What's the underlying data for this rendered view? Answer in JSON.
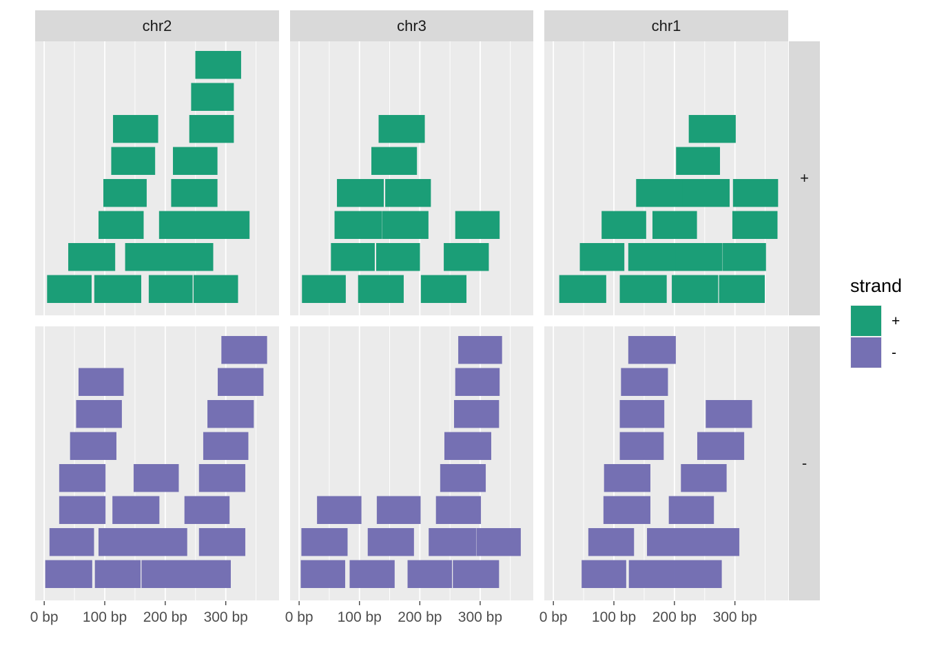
{
  "chart_data": {
    "type": "bar",
    "description_kind": "faceted interval layout plot (genomic ranges)",
    "x_axis": {
      "ticks": [
        0,
        100,
        200,
        300
      ],
      "tick_labels": [
        "0 bp",
        "100 bp",
        "200 bp",
        "300 bp"
      ]
    },
    "columns": [
      "chr2",
      "chr3",
      "chr1"
    ],
    "rows": [
      "+",
      "-"
    ],
    "legend": {
      "title": "strand",
      "entries": [
        {
          "label": "+",
          "color": "#1b9e77"
        },
        {
          "label": "-",
          "color": "#7570b3"
        }
      ]
    },
    "colors": {
      "+": "#1b9e77",
      "-": "#7570b3"
    },
    "panels": [
      {
        "chromosome": "chr2",
        "strand": "+",
        "xlim": [
          -15,
          388
        ],
        "ranges": [
          {
            "start": 5,
            "end": 78,
            "level": 1
          },
          {
            "start": 83,
            "end": 160,
            "level": 1
          },
          {
            "start": 173,
            "end": 245,
            "level": 1
          },
          {
            "start": 247,
            "end": 320,
            "level": 1
          },
          {
            "start": 40,
            "end": 117,
            "level": 2
          },
          {
            "start": 134,
            "end": 279,
            "level": 2
          },
          {
            "start": 90,
            "end": 164,
            "level": 3
          },
          {
            "start": 190,
            "end": 339,
            "level": 3
          },
          {
            "start": 98,
            "end": 169,
            "level": 4
          },
          {
            "start": 210,
            "end": 286,
            "level": 4
          },
          {
            "start": 111,
            "end": 183,
            "level": 5
          },
          {
            "start": 213,
            "end": 286,
            "level": 5
          },
          {
            "start": 114,
            "end": 188,
            "level": 6
          },
          {
            "start": 240,
            "end": 313,
            "level": 6
          },
          {
            "start": 243,
            "end": 313,
            "level": 7
          },
          {
            "start": 250,
            "end": 325,
            "level": 8
          }
        ]
      },
      {
        "chromosome": "chr3",
        "strand": "+",
        "xlim": [
          -15,
          388
        ],
        "ranges": [
          {
            "start": 5,
            "end": 77,
            "level": 1
          },
          {
            "start": 98,
            "end": 173,
            "level": 1
          },
          {
            "start": 202,
            "end": 277,
            "level": 1
          },
          {
            "start": 53,
            "end": 125,
            "level": 2
          },
          {
            "start": 128,
            "end": 200,
            "level": 2
          },
          {
            "start": 240,
            "end": 314,
            "level": 2
          },
          {
            "start": 59,
            "end": 137,
            "level": 3
          },
          {
            "start": 138,
            "end": 214,
            "level": 3
          },
          {
            "start": 259,
            "end": 332,
            "level": 3
          },
          {
            "start": 63,
            "end": 140,
            "level": 4
          },
          {
            "start": 143,
            "end": 218,
            "level": 4
          },
          {
            "start": 120,
            "end": 195,
            "level": 5
          },
          {
            "start": 132,
            "end": 208,
            "level": 6
          }
        ]
      },
      {
        "chromosome": "chr1",
        "strand": "+",
        "xlim": [
          -15,
          388
        ],
        "ranges": [
          {
            "start": 10,
            "end": 87,
            "level": 1
          },
          {
            "start": 110,
            "end": 187,
            "level": 1
          },
          {
            "start": 196,
            "end": 272,
            "level": 1
          },
          {
            "start": 274,
            "end": 349,
            "level": 1
          },
          {
            "start": 44,
            "end": 117,
            "level": 2
          },
          {
            "start": 124,
            "end": 202,
            "level": 2
          },
          {
            "start": 202,
            "end": 279,
            "level": 2
          },
          {
            "start": 280,
            "end": 351,
            "level": 2
          },
          {
            "start": 80,
            "end": 153,
            "level": 3
          },
          {
            "start": 164,
            "end": 237,
            "level": 3
          },
          {
            "start": 296,
            "end": 370,
            "level": 3
          },
          {
            "start": 137,
            "end": 213,
            "level": 4
          },
          {
            "start": 213,
            "end": 291,
            "level": 4
          },
          {
            "start": 297,
            "end": 371,
            "level": 4
          },
          {
            "start": 203,
            "end": 275,
            "level": 5
          },
          {
            "start": 224,
            "end": 301,
            "level": 6
          }
        ]
      },
      {
        "chromosome": "chr2",
        "strand": "-",
        "xlim": [
          -15,
          388
        ],
        "ranges": [
          {
            "start": 2,
            "end": 79,
            "level": 1
          },
          {
            "start": 84,
            "end": 159,
            "level": 1
          },
          {
            "start": 161,
            "end": 308,
            "level": 1
          },
          {
            "start": 9,
            "end": 82,
            "level": 2
          },
          {
            "start": 90,
            "end": 236,
            "level": 2
          },
          {
            "start": 256,
            "end": 332,
            "level": 2
          },
          {
            "start": 25,
            "end": 101,
            "level": 3
          },
          {
            "start": 113,
            "end": 190,
            "level": 3
          },
          {
            "start": 232,
            "end": 306,
            "level": 3
          },
          {
            "start": 25,
            "end": 101,
            "level": 4
          },
          {
            "start": 148,
            "end": 222,
            "level": 4
          },
          {
            "start": 256,
            "end": 332,
            "level": 4
          },
          {
            "start": 43,
            "end": 119,
            "level": 5
          },
          {
            "start": 263,
            "end": 337,
            "level": 5
          },
          {
            "start": 53,
            "end": 128,
            "level": 6
          },
          {
            "start": 270,
            "end": 346,
            "level": 6
          },
          {
            "start": 57,
            "end": 131,
            "level": 7
          },
          {
            "start": 287,
            "end": 362,
            "level": 7
          },
          {
            "start": 293,
            "end": 368,
            "level": 8
          }
        ]
      },
      {
        "chromosome": "chr3",
        "strand": "-",
        "xlim": [
          -15,
          388
        ],
        "ranges": [
          {
            "start": 3,
            "end": 76,
            "level": 1
          },
          {
            "start": 84,
            "end": 158,
            "level": 1
          },
          {
            "start": 180,
            "end": 253,
            "level": 1
          },
          {
            "start": 255,
            "end": 331,
            "level": 1
          },
          {
            "start": 4,
            "end": 80,
            "level": 2
          },
          {
            "start": 114,
            "end": 190,
            "level": 2
          },
          {
            "start": 215,
            "end": 293,
            "level": 2
          },
          {
            "start": 294,
            "end": 367,
            "level": 2
          },
          {
            "start": 30,
            "end": 103,
            "level": 3
          },
          {
            "start": 129,
            "end": 201,
            "level": 3
          },
          {
            "start": 227,
            "end": 301,
            "level": 3
          },
          {
            "start": 234,
            "end": 309,
            "level": 4
          },
          {
            "start": 241,
            "end": 318,
            "level": 5
          },
          {
            "start": 257,
            "end": 331,
            "level": 6
          },
          {
            "start": 259,
            "end": 332,
            "level": 7
          },
          {
            "start": 264,
            "end": 336,
            "level": 8
          }
        ]
      },
      {
        "chromosome": "chr1",
        "strand": "-",
        "xlim": [
          -15,
          388
        ],
        "ranges": [
          {
            "start": 47,
            "end": 120,
            "level": 1
          },
          {
            "start": 125,
            "end": 200,
            "level": 1
          },
          {
            "start": 200,
            "end": 278,
            "level": 1
          },
          {
            "start": 58,
            "end": 133,
            "level": 2
          },
          {
            "start": 155,
            "end": 307,
            "level": 2
          },
          {
            "start": 83,
            "end": 160,
            "level": 3
          },
          {
            "start": 191,
            "end": 265,
            "level": 3
          },
          {
            "start": 84,
            "end": 160,
            "level": 4
          },
          {
            "start": 211,
            "end": 286,
            "level": 4
          },
          {
            "start": 110,
            "end": 182,
            "level": 5
          },
          {
            "start": 238,
            "end": 315,
            "level": 5
          },
          {
            "start": 110,
            "end": 183,
            "level": 6
          },
          {
            "start": 252,
            "end": 328,
            "level": 6
          },
          {
            "start": 112,
            "end": 189,
            "level": 7
          },
          {
            "start": 124,
            "end": 202,
            "level": 8
          }
        ]
      }
    ]
  }
}
